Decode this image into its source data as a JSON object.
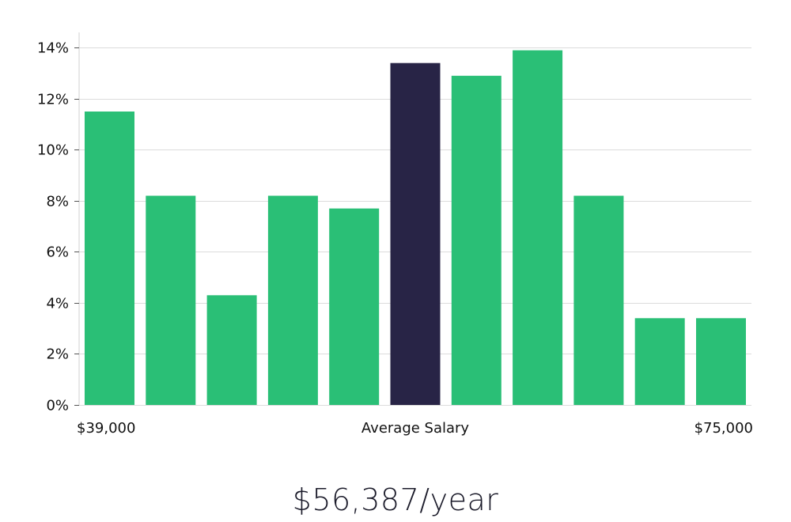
{
  "chart_data": {
    "type": "bar",
    "values": [
      11.5,
      8.2,
      4.3,
      8.2,
      7.7,
      13.4,
      12.9,
      13.9,
      8.2,
      3.4,
      3.4
    ],
    "highlight_index": 5,
    "ylim": [
      0,
      14.6
    ],
    "y_ticks": [
      0,
      2,
      4,
      6,
      8,
      10,
      12,
      14
    ],
    "y_tick_suffix": "%",
    "x_labels": {
      "left": "$39,000",
      "center": "Average Salary",
      "right": "$75,000"
    },
    "grid": true
  },
  "colors": {
    "bar": "#2abf76",
    "highlight": "#282446",
    "grid": "#dcdcdc",
    "axis": "#d0d0d0"
  },
  "salary": {
    "display": "$56,387/year"
  }
}
